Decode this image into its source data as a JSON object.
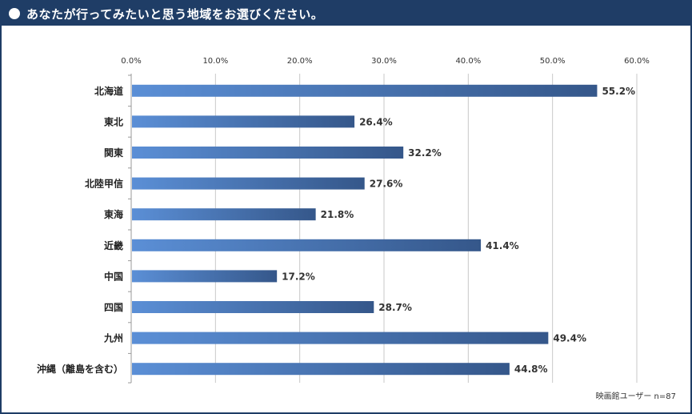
{
  "header": {
    "title": "あなたが行ってみたいと思う地域をお選びください。"
  },
  "note": "映画館ユーザー n=87",
  "colors": {
    "header_bg": "#1f3d66",
    "bar_start": "#5b8fd6",
    "bar_end": "#35578a",
    "grid": "#c8c8c8"
  },
  "chart_data": {
    "type": "bar",
    "orientation": "horizontal",
    "categories": [
      "北海道",
      "東北",
      "関東",
      "北陸甲信",
      "東海",
      "近畿",
      "中国",
      "四国",
      "九州",
      "沖縄（離島を含む）"
    ],
    "values": [
      55.2,
      26.4,
      32.2,
      27.6,
      21.8,
      41.4,
      17.2,
      28.7,
      49.4,
      44.8
    ],
    "value_labels": [
      "55.2%",
      "26.4%",
      "32.2%",
      "27.6%",
      "21.8%",
      "41.4%",
      "17.2%",
      "28.7%",
      "49.4%",
      "44.8%"
    ],
    "xlim": [
      0,
      60
    ],
    "ticks": [
      0,
      10,
      20,
      30,
      40,
      50,
      60
    ],
    "tick_labels": [
      "0.0%",
      "10.0%",
      "20.0%",
      "30.0%",
      "40.0%",
      "50.0%",
      "60.0%"
    ],
    "grid": true
  }
}
